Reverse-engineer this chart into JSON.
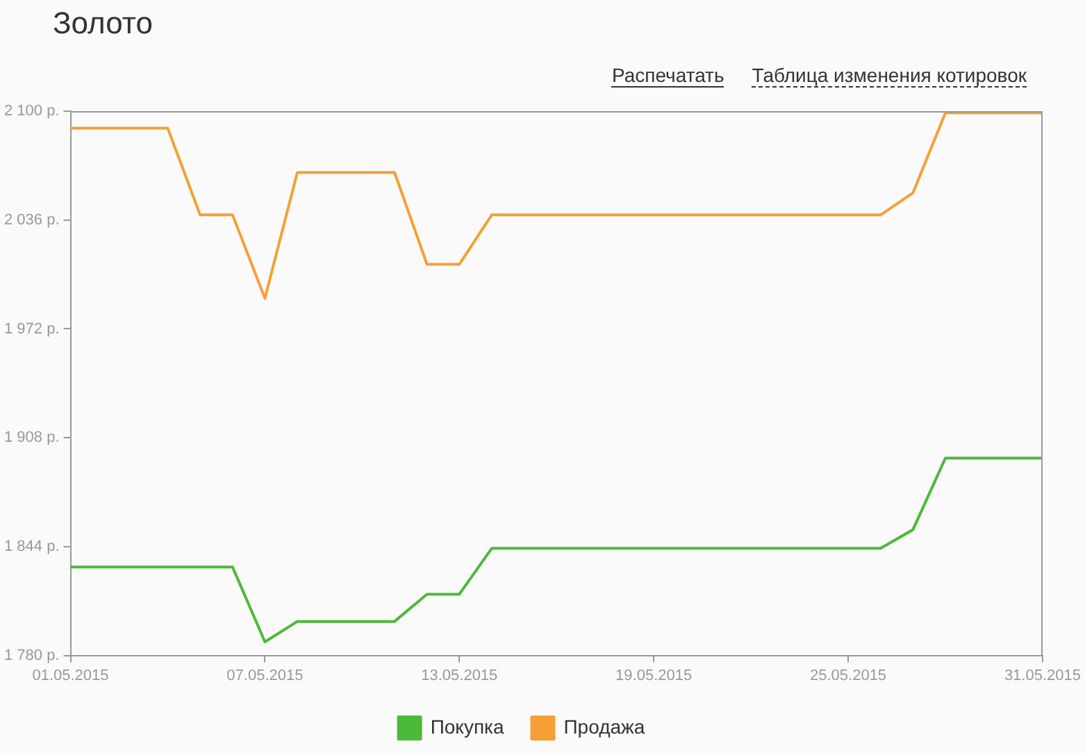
{
  "chart_data": {
    "type": "line",
    "title": "Золото",
    "annotations": [
      "Распечатать",
      "Таблица изменения котировок"
    ],
    "x": [
      "2015-05-01",
      "2015-05-02",
      "2015-05-03",
      "2015-05-04",
      "2015-05-05",
      "2015-05-06",
      "2015-05-07",
      "2015-05-08",
      "2015-05-09",
      "2015-05-10",
      "2015-05-11",
      "2015-05-12",
      "2015-05-13",
      "2015-05-14",
      "2015-05-15",
      "2015-05-16",
      "2015-05-17",
      "2015-05-18",
      "2015-05-19",
      "2015-05-20",
      "2015-05-21",
      "2015-05-22",
      "2015-05-23",
      "2015-05-24",
      "2015-05-25",
      "2015-05-26",
      "2015-05-27",
      "2015-05-28",
      "2015-05-29",
      "2015-05-30",
      "2015-05-31"
    ],
    "series": [
      {
        "name": "Покупка",
        "color": "#4cb93a",
        "values": [
          1832,
          1832,
          1832,
          1832,
          1832,
          1832,
          1788,
          1800,
          1800,
          1800,
          1800,
          1816,
          1816,
          1843,
          1843,
          1843,
          1843,
          1843,
          1843,
          1843,
          1843,
          1843,
          1843,
          1843,
          1843,
          1843,
          1854,
          1896,
          1896,
          1896,
          1896
        ]
      },
      {
        "name": "Продажа",
        "color": "#f5a035",
        "values": [
          2090,
          2090,
          2090,
          2090,
          2039,
          2039,
          1990,
          2064,
          2064,
          2064,
          2064,
          2010,
          2010,
          2039,
          2039,
          2039,
          2039,
          2039,
          2039,
          2039,
          2039,
          2039,
          2039,
          2039,
          2039,
          2039,
          2052,
          2099,
          2099,
          2099,
          2099
        ]
      }
    ],
    "xlim": [
      "2015-05-01",
      "2015-05-31"
    ],
    "xticks": [
      {
        "value": "2015-05-01",
        "label": "01.05.2015"
      },
      {
        "value": "2015-05-07",
        "label": "07.05.2015"
      },
      {
        "value": "2015-05-13",
        "label": "13.05.2015"
      },
      {
        "value": "2015-05-19",
        "label": "19.05.2015"
      },
      {
        "value": "2015-05-25",
        "label": "25.05.2015"
      },
      {
        "value": "2015-05-31",
        "label": "31.05.2015"
      }
    ],
    "ylim": [
      1780,
      2100
    ],
    "yticks": [
      {
        "value": 1780,
        "label": "1 780 р."
      },
      {
        "value": 1844,
        "label": "1 844 р."
      },
      {
        "value": 1908,
        "label": "1 908 р."
      },
      {
        "value": 1972,
        "label": "1 972 р."
      },
      {
        "value": 2036,
        "label": "2 036 р."
      },
      {
        "value": 2100,
        "label": "2 100 р."
      }
    ],
    "grid": false,
    "legend": "bottom",
    "marker": "none",
    "line_style": "solid"
  }
}
